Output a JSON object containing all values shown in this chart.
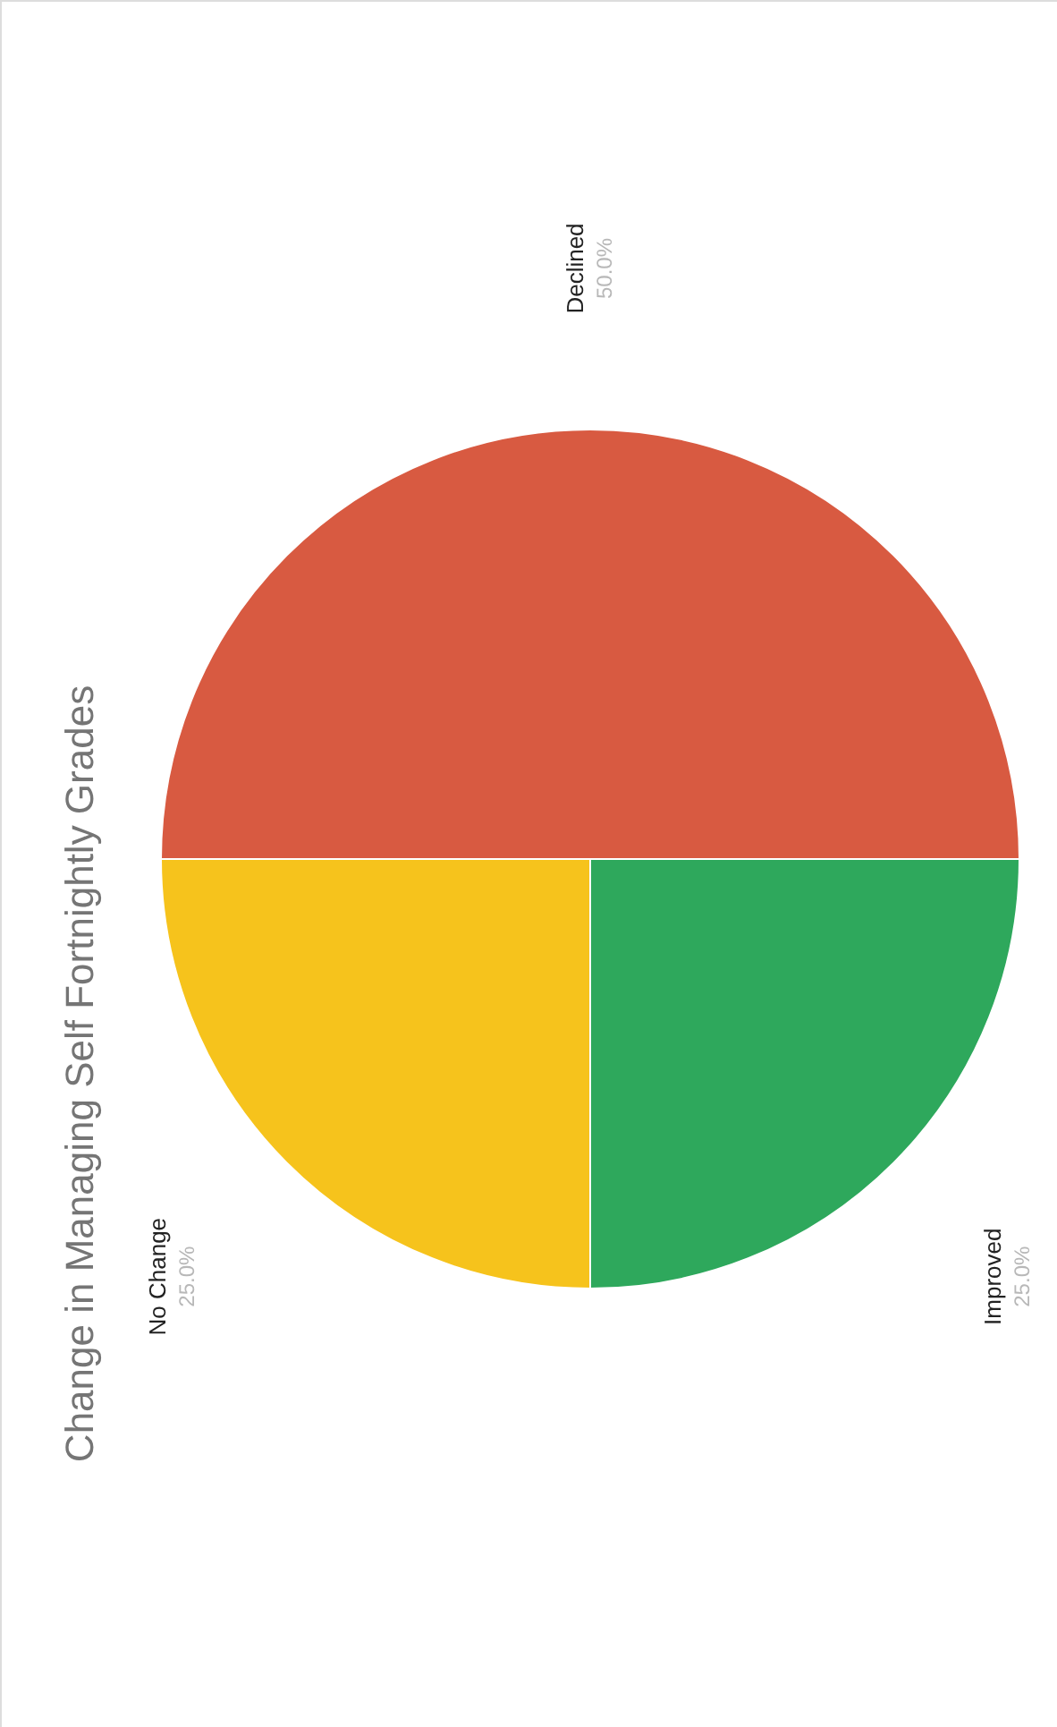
{
  "chart_data": {
    "type": "pie",
    "title": "Change in Managing Self Fortnightly Grades",
    "categories": [
      "Declined",
      "Improved",
      "No Change"
    ],
    "values": [
      50,
      25,
      25
    ],
    "value_labels": [
      "50.0%",
      "25.0%",
      "25.0%"
    ],
    "colors": [
      "#d85a41",
      "#2ea85c",
      "#f6c31c"
    ],
    "legend": false
  }
}
